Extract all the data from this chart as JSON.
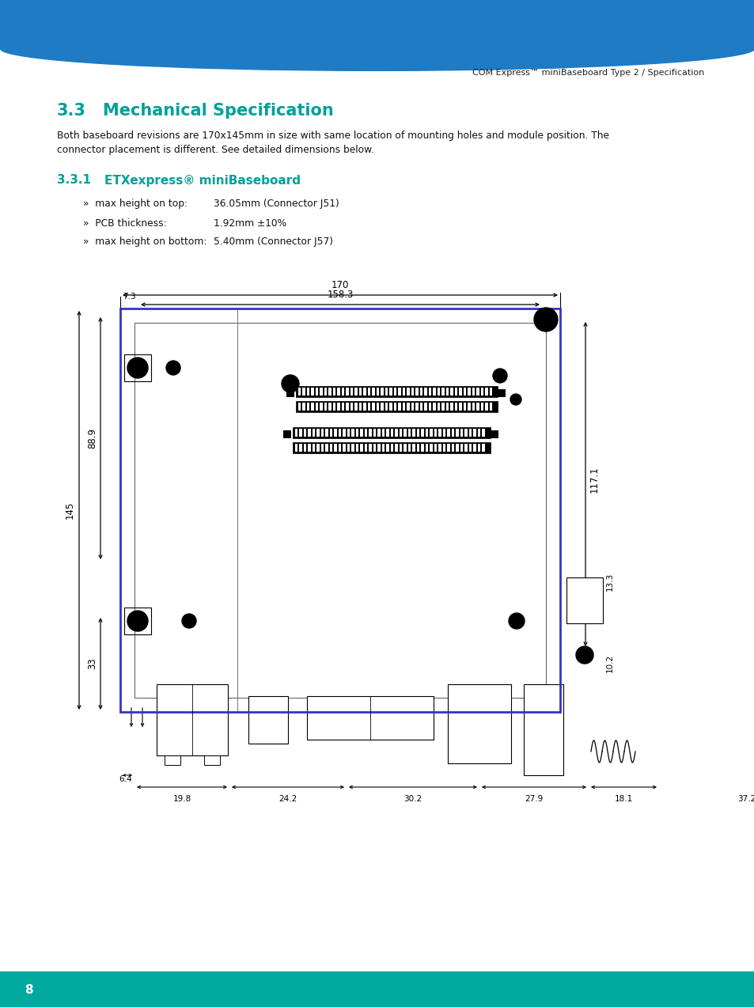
{
  "header_text": "COM Express™ miniBaseboard Type 2 / Specification",
  "top_bar_color": "#1e7bc4",
  "bottom_bar_color": "#00a99d",
  "section_title_num": "3.3",
  "section_title_text": "Mechanical Specification",
  "section_color": "#00a099",
  "body_text_line1": "Both baseboard revisions are 170x145mm in size with same location of mounting holes and module position. The",
  "body_text_line2": "connector placement is different. See detailed dimensions below.",
  "subsection_num": "3.3.1",
  "subsection_text": "ETXexpress® miniBaseboard",
  "spec1_label": "»  max height on top:",
  "spec1_value": "36.05mm (Connector J51)",
  "spec2_label": "»  PCB thickness:",
  "spec2_value": "1.92mm ±10%",
  "spec3_label": "»  max height on bottom:",
  "spec3_value": "5.40mm (Connector J57)",
  "dim_170": "170",
  "dim_158_3": "158.3",
  "dim_7_3": "7.3",
  "dim_145": "145",
  "dim_88_9": "88.9",
  "dim_117_1": "117.1",
  "dim_33": "33",
  "dim_6_4": "6.4",
  "dim_19_8": "19.8",
  "dim_24_2": "24.2",
  "dim_30_2": "30.2",
  "dim_27_9": "27.9",
  "dim_18_1": "18.1",
  "dim_37_2": "37.2",
  "dim_10_2": "10.2",
  "dim_13_3": "13.3",
  "page_number": "8",
  "board_color": "#3333cc",
  "black": "#000000",
  "white": "#ffffff",
  "bg_color": "#ffffff"
}
